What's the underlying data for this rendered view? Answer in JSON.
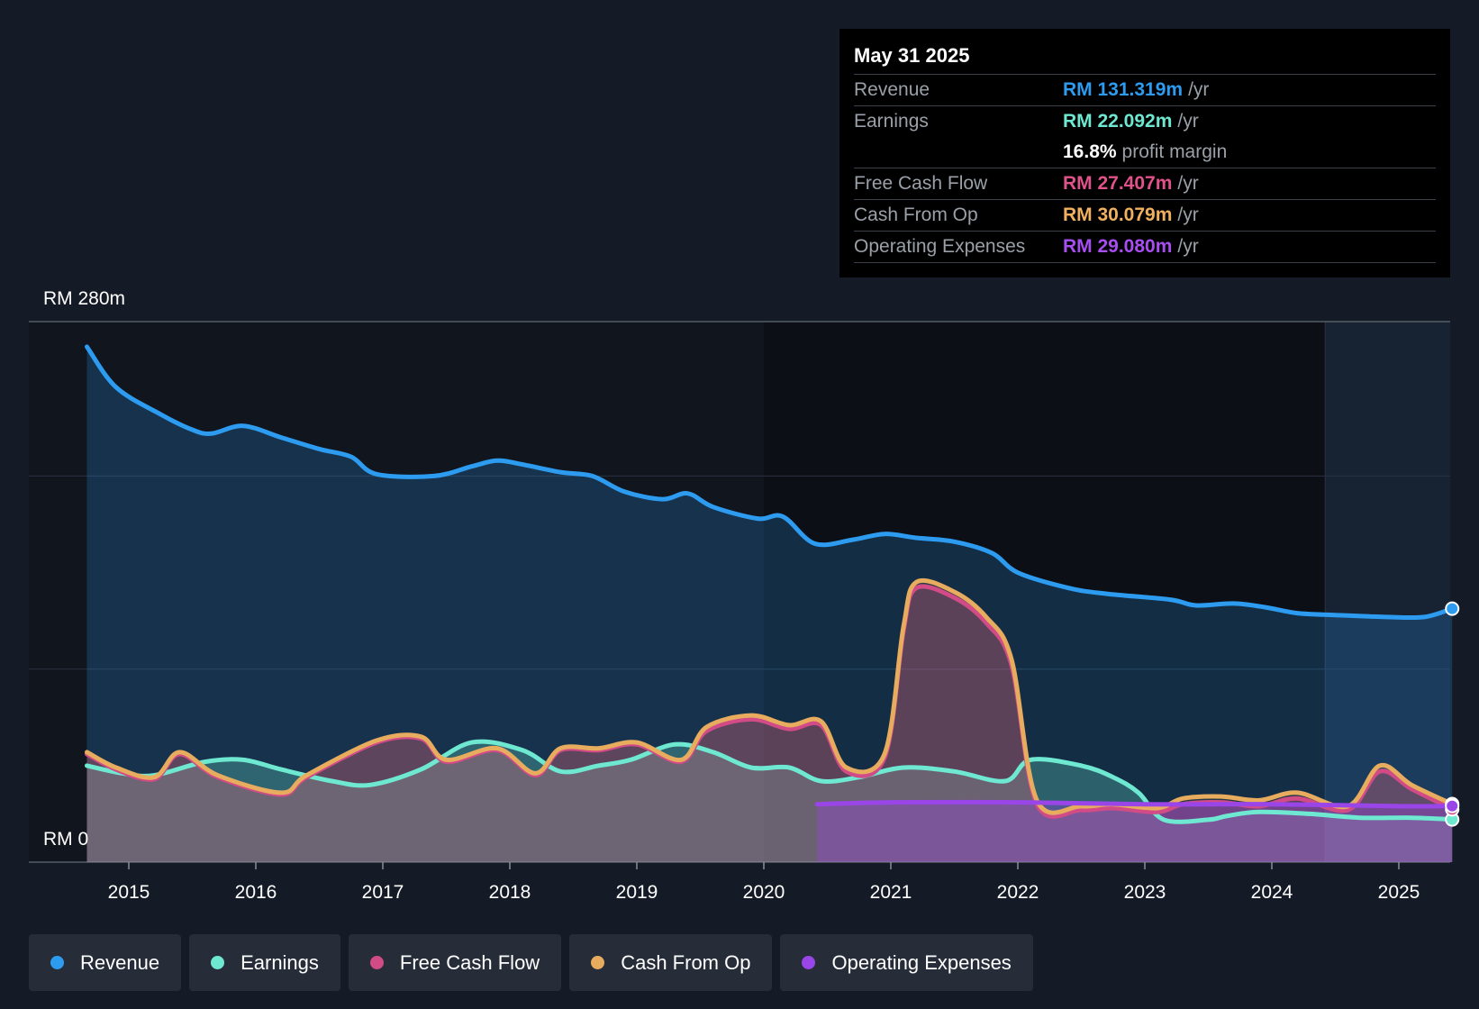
{
  "tooltip": {
    "date": "May 31 2025",
    "rows": [
      {
        "label": "Revenue",
        "value": "RM 131.319m",
        "unit": "/yr",
        "color": "#2d9cf0"
      },
      {
        "label": "Earnings",
        "value": "RM 22.092m",
        "unit": "/yr",
        "color": "#6fe8d2"
      },
      {
        "label": "",
        "value": "16.8%",
        "unit": "profit margin",
        "color": "#ffffff"
      },
      {
        "label": "Free Cash Flow",
        "value": "RM 27.407m",
        "unit": "/yr",
        "color": "#e0528a"
      },
      {
        "label": "Cash From Op",
        "value": "RM 30.079m",
        "unit": "/yr",
        "color": "#f0b060"
      },
      {
        "label": "Operating Expenses",
        "value": "RM 29.080m",
        "unit": "/yr",
        "color": "#a64ef0"
      }
    ]
  },
  "legend": [
    {
      "label": "Revenue",
      "color": "#2d9cf0"
    },
    {
      "label": "Earnings",
      "color": "#6fe8d2"
    },
    {
      "label": "Free Cash Flow",
      "color": "#d14b87"
    },
    {
      "label": "Cash From Op",
      "color": "#e8ac5e"
    },
    {
      "label": "Operating Expenses",
      "color": "#9a45e8"
    }
  ],
  "chart_data": {
    "type": "line",
    "title": "",
    "xlabel": "",
    "ylabel": "",
    "y_top_label": "RM 280m",
    "y_bottom_label": "RM 0",
    "ylim": [
      0,
      280
    ],
    "xlim": [
      2014.67,
      2025.42
    ],
    "x_ticks": [
      "2015",
      "2016",
      "2017",
      "2018",
      "2019",
      "2020",
      "2021",
      "2022",
      "2023",
      "2024",
      "2025"
    ],
    "x_tick_values": [
      2015,
      2016,
      2017,
      2018,
      2019,
      2020,
      2021,
      2022,
      2023,
      2024,
      2025
    ],
    "series": [
      {
        "name": "Revenue",
        "color": "#2d9cf0",
        "points": [
          [
            2014.67,
            267
          ],
          [
            2014.9,
            246
          ],
          [
            2015.25,
            232
          ],
          [
            2015.5,
            224
          ],
          [
            2015.65,
            222
          ],
          [
            2015.9,
            226
          ],
          [
            2016.2,
            220
          ],
          [
            2016.5,
            214
          ],
          [
            2016.75,
            210
          ],
          [
            2016.95,
            201
          ],
          [
            2017.4,
            200
          ],
          [
            2017.7,
            205
          ],
          [
            2017.9,
            208
          ],
          [
            2018.1,
            206
          ],
          [
            2018.4,
            202
          ],
          [
            2018.65,
            200
          ],
          [
            2018.9,
            192
          ],
          [
            2019.2,
            188
          ],
          [
            2019.4,
            191
          ],
          [
            2019.6,
            184
          ],
          [
            2019.95,
            178
          ],
          [
            2020.15,
            179
          ],
          [
            2020.4,
            165
          ],
          [
            2020.7,
            167
          ],
          [
            2020.95,
            170
          ],
          [
            2021.2,
            168
          ],
          [
            2021.5,
            166
          ],
          [
            2021.8,
            160
          ],
          [
            2022.0,
            150
          ],
          [
            2022.4,
            142
          ],
          [
            2022.7,
            139
          ],
          [
            2023.2,
            136
          ],
          [
            2023.4,
            133
          ],
          [
            2023.7,
            134
          ],
          [
            2023.95,
            132
          ],
          [
            2024.2,
            129
          ],
          [
            2024.5,
            128
          ],
          [
            2024.9,
            127
          ],
          [
            2025.2,
            127
          ],
          [
            2025.42,
            131.3
          ]
        ]
      },
      {
        "name": "Earnings",
        "color": "#6fe8d2",
        "points": [
          [
            2014.67,
            50
          ],
          [
            2014.95,
            46
          ],
          [
            2015.2,
            45
          ],
          [
            2015.6,
            52
          ],
          [
            2015.9,
            53
          ],
          [
            2016.2,
            48
          ],
          [
            2016.6,
            42
          ],
          [
            2016.9,
            40
          ],
          [
            2017.3,
            48
          ],
          [
            2017.7,
            62
          ],
          [
            2018.1,
            58
          ],
          [
            2018.4,
            47
          ],
          [
            2018.7,
            50
          ],
          [
            2018.95,
            53
          ],
          [
            2019.3,
            61
          ],
          [
            2019.6,
            57
          ],
          [
            2019.9,
            49
          ],
          [
            2020.2,
            49
          ],
          [
            2020.45,
            42
          ],
          [
            2020.75,
            44
          ],
          [
            2021.1,
            49
          ],
          [
            2021.5,
            47
          ],
          [
            2021.9,
            42
          ],
          [
            2022.1,
            53
          ],
          [
            2022.5,
            50
          ],
          [
            2022.75,
            44
          ],
          [
            2022.95,
            36
          ],
          [
            2023.15,
            22
          ],
          [
            2023.5,
            22
          ],
          [
            2023.65,
            24
          ],
          [
            2023.9,
            26
          ],
          [
            2024.3,
            25
          ],
          [
            2024.7,
            23
          ],
          [
            2025.1,
            23
          ],
          [
            2025.42,
            22.1
          ]
        ]
      },
      {
        "name": "Free Cash Flow",
        "color": "#d14b87",
        "points": [
          [
            2014.67,
            56
          ],
          [
            2014.9,
            48
          ],
          [
            2015.2,
            43
          ],
          [
            2015.4,
            56
          ],
          [
            2015.7,
            44
          ],
          [
            2016.2,
            35
          ],
          [
            2016.4,
            44
          ],
          [
            2016.95,
            62
          ],
          [
            2017.3,
            64
          ],
          [
            2017.5,
            52
          ],
          [
            2017.9,
            58
          ],
          [
            2018.2,
            45
          ],
          [
            2018.4,
            58
          ],
          [
            2018.7,
            58
          ],
          [
            2019.0,
            61
          ],
          [
            2019.35,
            52
          ],
          [
            2019.55,
            68
          ],
          [
            2019.9,
            74
          ],
          [
            2020.2,
            69
          ],
          [
            2020.45,
            71
          ],
          [
            2020.65,
            47
          ],
          [
            2020.95,
            54
          ],
          [
            2021.1,
            120
          ],
          [
            2021.2,
            142
          ],
          [
            2021.5,
            137
          ],
          [
            2021.75,
            124
          ],
          [
            2021.95,
            102
          ],
          [
            2022.15,
            30
          ],
          [
            2022.5,
            27
          ],
          [
            2022.75,
            28
          ],
          [
            2023.1,
            26
          ],
          [
            2023.3,
            30
          ],
          [
            2023.6,
            31
          ],
          [
            2023.9,
            29
          ],
          [
            2024.2,
            33
          ],
          [
            2024.6,
            27
          ],
          [
            2024.85,
            47
          ],
          [
            2025.1,
            38
          ],
          [
            2025.42,
            27.4
          ]
        ]
      },
      {
        "name": "Cash From Op",
        "color": "#e8ac5e",
        "points": [
          [
            2014.67,
            57
          ],
          [
            2014.9,
            49
          ],
          [
            2015.2,
            44
          ],
          [
            2015.4,
            57
          ],
          [
            2015.7,
            45
          ],
          [
            2016.2,
            36
          ],
          [
            2016.4,
            45
          ],
          [
            2016.95,
            63
          ],
          [
            2017.3,
            65
          ],
          [
            2017.5,
            53
          ],
          [
            2017.9,
            59
          ],
          [
            2018.2,
            46
          ],
          [
            2018.4,
            59
          ],
          [
            2018.7,
            59
          ],
          [
            2019.0,
            62
          ],
          [
            2019.35,
            53
          ],
          [
            2019.55,
            70
          ],
          [
            2019.9,
            76
          ],
          [
            2020.2,
            71
          ],
          [
            2020.45,
            73
          ],
          [
            2020.65,
            49
          ],
          [
            2020.95,
            56
          ],
          [
            2021.1,
            122
          ],
          [
            2021.2,
            145
          ],
          [
            2021.5,
            140
          ],
          [
            2021.75,
            127
          ],
          [
            2021.95,
            105
          ],
          [
            2022.15,
            32
          ],
          [
            2022.5,
            29
          ],
          [
            2022.75,
            30
          ],
          [
            2023.1,
            28
          ],
          [
            2023.3,
            33
          ],
          [
            2023.6,
            34
          ],
          [
            2023.9,
            32
          ],
          [
            2024.2,
            36
          ],
          [
            2024.6,
            29
          ],
          [
            2024.85,
            50
          ],
          [
            2025.1,
            40
          ],
          [
            2025.42,
            30.1
          ]
        ]
      },
      {
        "name": "Operating Expenses",
        "color": "#9a45e8",
        "points": [
          [
            2020.42,
            30
          ],
          [
            2021.0,
            31
          ],
          [
            2022.0,
            31
          ],
          [
            2023.0,
            30
          ],
          [
            2024.0,
            30
          ],
          [
            2025.0,
            29
          ],
          [
            2025.42,
            29.1
          ]
        ]
      }
    ],
    "forecast_band_start": 2024.42,
    "hover_band": [
      2020.0,
      2024.42
    ]
  }
}
